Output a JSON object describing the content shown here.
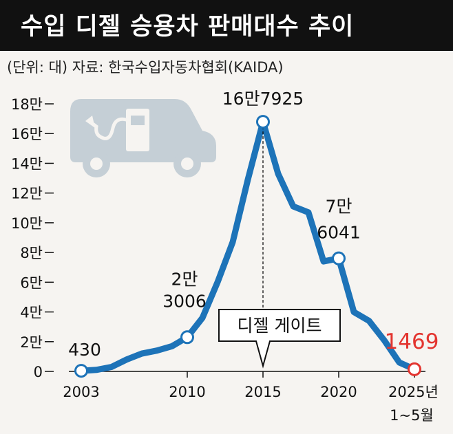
{
  "title": "수입 디젤 승용차 판매대수 추이",
  "subtitle": "(단위: 대) 자료: 한국수입자동차협회(KAIDA)",
  "colors": {
    "line": "#1d73b8",
    "title_bg": "#111111",
    "highlight": "#e3342f",
    "car_icon": "#c5cfd6",
    "callout_border": "#111111"
  },
  "icon": "car-with-fuel-pump-icon",
  "callout": {
    "label": "디젤 게이트",
    "year": 2015
  },
  "chart_data": {
    "type": "line",
    "title": "수입 디젤 승용차 판매대수 추이",
    "xlabel": "",
    "ylabel": "",
    "unit": "대",
    "xlim": [
      2003,
      2025
    ],
    "ylim": [
      0,
      180000
    ],
    "grid": false,
    "y_ticks": [
      0,
      20000,
      40000,
      60000,
      80000,
      100000,
      120000,
      140000,
      160000,
      180000
    ],
    "y_tick_labels": [
      "0",
      "2만",
      "4만",
      "6만",
      "8만",
      "10만",
      "12만",
      "14만",
      "16만",
      "18만"
    ],
    "x_ticks": [
      2003,
      2010,
      2015,
      2020,
      2025
    ],
    "x_tick_labels": [
      "2003",
      "2010",
      "2015",
      "2020",
      "2025년"
    ],
    "x_tick_sublabel": "1~5월",
    "x": [
      2003,
      2004,
      2005,
      2006,
      2007,
      2008,
      2009,
      2010,
      2011,
      2012,
      2013,
      2014,
      2015,
      2016,
      2017,
      2018,
      2019,
      2020,
      2021,
      2022,
      2023,
      2024,
      2025
    ],
    "values": [
      430,
      1000,
      3000,
      8000,
      12000,
      14000,
      17000,
      23006,
      36000,
      60000,
      87000,
      129000,
      167925,
      133000,
      111000,
      107000,
      74000,
      76041,
      40000,
      34000,
      21000,
      6000,
      1469
    ],
    "labeled_points": [
      {
        "x": 2003,
        "value": 430,
        "label": "430"
      },
      {
        "x": 2010,
        "value": 23006,
        "label": [
          "2만",
          "3006"
        ]
      },
      {
        "x": 2015,
        "value": 167925,
        "label": "16만7925"
      },
      {
        "x": 2020,
        "value": 76041,
        "label": [
          "7만",
          "6041"
        ]
      },
      {
        "x": 2025,
        "value": 1469,
        "label": "1469"
      }
    ]
  }
}
